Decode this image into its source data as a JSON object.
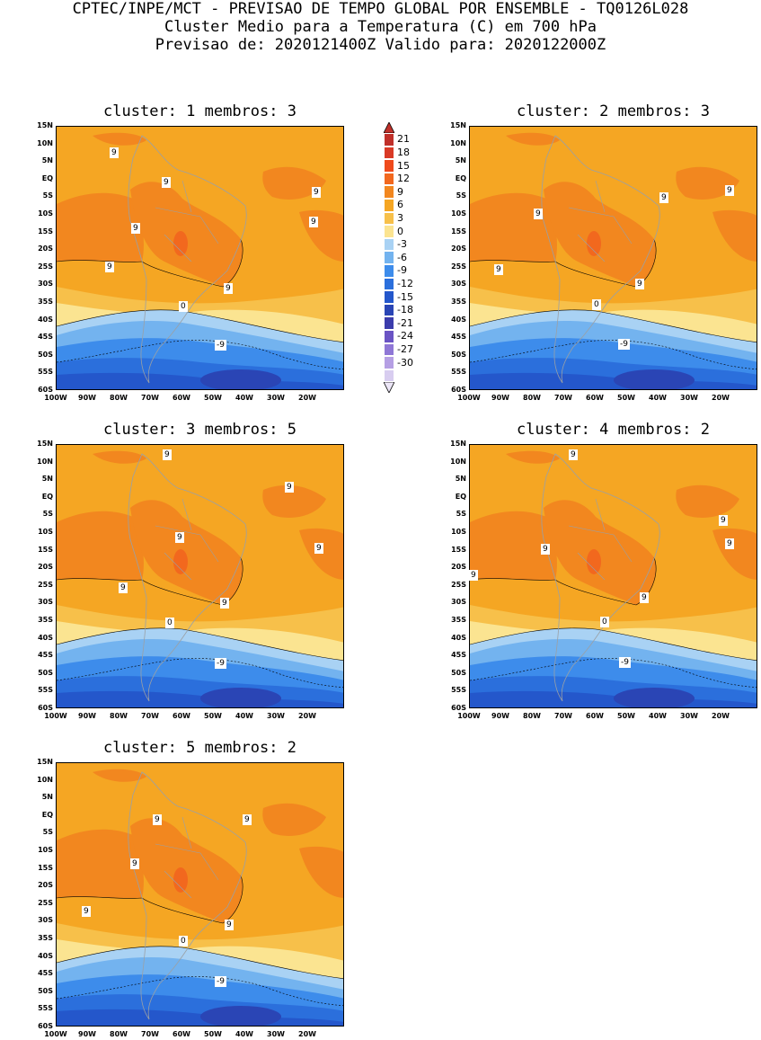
{
  "header": {
    "line1": "CPTEC/INPE/MCT - PREVISAO DE TEMPO GLOBAL POR ENSEMBLE - TQ0126L028",
    "line2": "Cluster Medio para a Temperatura (C) em 700 hPa",
    "line3": "Previsao de: 2020121400Z   Valido para: 2020122000Z"
  },
  "axes": {
    "lat_labels": [
      "15N",
      "10N",
      "5N",
      "EQ",
      "5S",
      "10S",
      "15S",
      "20S",
      "25S",
      "30S",
      "35S",
      "40S",
      "45S",
      "50S",
      "55S",
      "60S"
    ],
    "lon_labels": [
      "100W",
      "90W",
      "80W",
      "70W",
      "60W",
      "50W",
      "40W",
      "30W",
      "20W"
    ]
  },
  "colorbar": {
    "labels": [
      "21",
      "18",
      "15",
      "12",
      "9",
      "6",
      "3",
      "0",
      "-3",
      "-6",
      "-9",
      "-12",
      "-15",
      "-18",
      "-21",
      "-24",
      "-27",
      "-30"
    ],
    "colors": [
      "#c0302a",
      "#d93a26",
      "#ef4a1c",
      "#f2681e",
      "#f2871f",
      "#f5a623",
      "#f7c04a",
      "#fbe491",
      "#a9d2f4",
      "#73b3ef",
      "#3d8ceb",
      "#2b6fdc",
      "#2457cb",
      "#2a45b5",
      "#3b3cac",
      "#6a54c4",
      "#8f77d6",
      "#b59fe4",
      "#d8cdf0"
    ]
  },
  "clusters": [
    {
      "title": "cluster: 1   membros: 3",
      "contour_labels": [
        "9",
        "9",
        "9",
        "9",
        "9",
        "9",
        "9",
        "0",
        "-9"
      ]
    },
    {
      "title": "cluster: 2   membros: 3",
      "contour_labels": [
        "9",
        "9",
        "9",
        "9",
        "9",
        "0",
        "-9"
      ]
    },
    {
      "title": "cluster: 3   membros: 5",
      "contour_labels": [
        "9",
        "9",
        "9",
        "9",
        "9",
        "9",
        "0",
        "-9"
      ]
    },
    {
      "title": "cluster: 4   membros: 2",
      "contour_labels": [
        "9",
        "9",
        "9",
        "9",
        "9",
        "9",
        "0",
        "-9"
      ]
    },
    {
      "title": "cluster: 5   membros: 2",
      "contour_labels": [
        "9",
        "9",
        "9",
        "9",
        "9",
        "0",
        "-9"
      ]
    }
  ]
}
